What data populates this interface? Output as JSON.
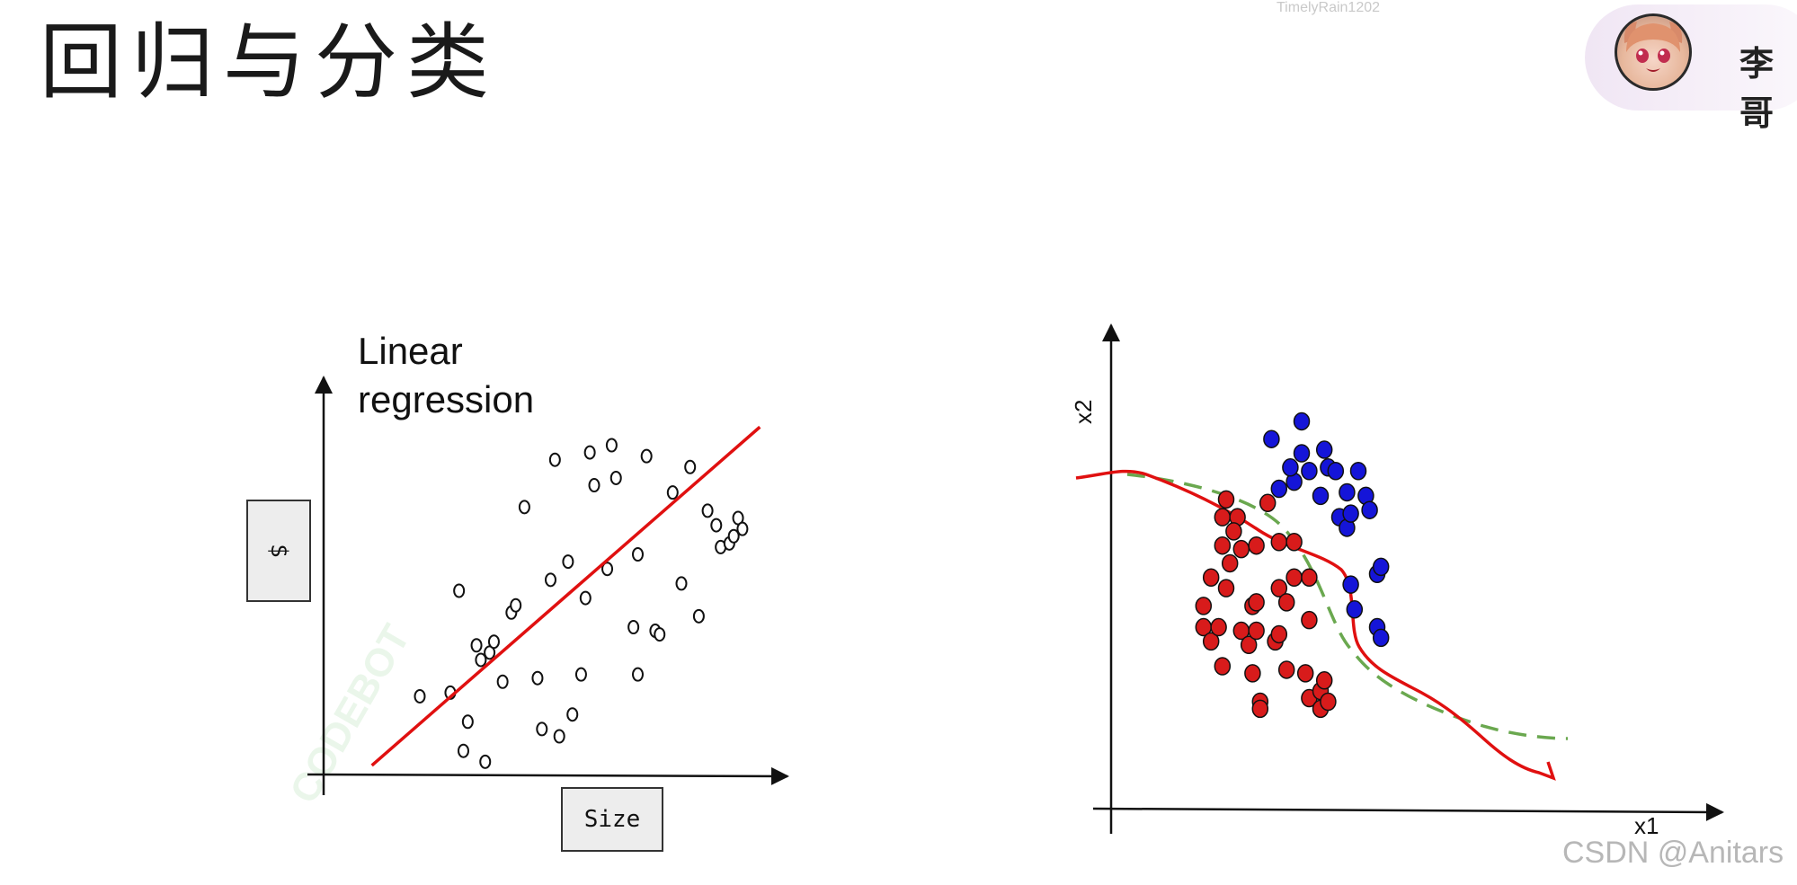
{
  "slide": {
    "title": "回归与分类",
    "watermark_top": "TimelyRain1202",
    "presenter_name": "李哥",
    "watermark_bottom": "CSDN @Anitars",
    "faint_watermark": "CODEBOT"
  },
  "chart_data": [
    {
      "type": "scatter",
      "title": "Linear regression",
      "xlabel": "Size",
      "ylabel": "$",
      "xlim": [
        0,
        100
      ],
      "ylim": [
        0,
        100
      ],
      "marker": "hollow-circle",
      "fit_line": {
        "color": "#e01010",
        "x": [
          9,
          98
        ],
        "y": [
          2,
          95
        ]
      },
      "points": [
        [
          20,
          21
        ],
        [
          29,
          50
        ],
        [
          27,
          22
        ],
        [
          31,
          14
        ],
        [
          30,
          6
        ],
        [
          35,
          3
        ],
        [
          33,
          35
        ],
        [
          34,
          31
        ],
        [
          36,
          33
        ],
        [
          37,
          36
        ],
        [
          39,
          25
        ],
        [
          41,
          44
        ],
        [
          42,
          46
        ],
        [
          44,
          73
        ],
        [
          47,
          26
        ],
        [
          48,
          12
        ],
        [
          50,
          53
        ],
        [
          51,
          86
        ],
        [
          52,
          10
        ],
        [
          54,
          58
        ],
        [
          55,
          16
        ],
        [
          57,
          27
        ],
        [
          58,
          48
        ],
        [
          59,
          88
        ],
        [
          60,
          79
        ],
        [
          63,
          56
        ],
        [
          64,
          90
        ],
        [
          65,
          81
        ],
        [
          69,
          40
        ],
        [
          70,
          60
        ],
        [
          70,
          27
        ],
        [
          72,
          87
        ],
        [
          74,
          39
        ],
        [
          75,
          38
        ],
        [
          78,
          77
        ],
        [
          80,
          52
        ],
        [
          82,
          84
        ],
        [
          84,
          43
        ],
        [
          86,
          72
        ],
        [
          88,
          68
        ],
        [
          89,
          62
        ],
        [
          91,
          63
        ],
        [
          92,
          65
        ],
        [
          93,
          70
        ],
        [
          94,
          67
        ]
      ]
    },
    {
      "type": "scatter",
      "xlabel": "x1",
      "ylabel": "x2",
      "xlim": [
        0,
        100
      ],
      "ylim": [
        0,
        100
      ],
      "series": [
        {
          "color": "#d81b1b",
          "points": [
            [
              16,
              55
            ],
            [
              14,
              47
            ],
            [
              14,
              41
            ],
            [
              16,
              37
            ],
            [
              19,
              30
            ],
            [
              18,
              41
            ],
            [
              19,
              64
            ],
            [
              19,
              72
            ],
            [
              20,
              77
            ],
            [
              23,
              72
            ],
            [
              22,
              68
            ],
            [
              21,
              59
            ],
            [
              24,
              63
            ],
            [
              20,
              52
            ],
            [
              24,
              40
            ],
            [
              26,
              36
            ],
            [
              27,
              47
            ],
            [
              27,
              28
            ],
            [
              29,
              20
            ],
            [
              29,
              18
            ],
            [
              28,
              64
            ],
            [
              28,
              48
            ],
            [
              28,
              40
            ],
            [
              31,
              76
            ],
            [
              33,
              37
            ],
            [
              34,
              65
            ],
            [
              34,
              52
            ],
            [
              34,
              39
            ],
            [
              36,
              48
            ],
            [
              36,
              29
            ],
            [
              38,
              65
            ],
            [
              38,
              55
            ],
            [
              42,
              55
            ],
            [
              42,
              43
            ],
            [
              41,
              28
            ],
            [
              42,
              21
            ],
            [
              45,
              23
            ],
            [
              45,
              18
            ],
            [
              46,
              26
            ],
            [
              47,
              20
            ]
          ]
        },
        {
          "color": "#1515d8",
          "points": [
            [
              32,
              94
            ],
            [
              34,
              80
            ],
            [
              40,
              99
            ],
            [
              38,
              82
            ],
            [
              40,
              90
            ],
            [
              37,
              86
            ],
            [
              42,
              85
            ],
            [
              45,
              78
            ],
            [
              46,
              91
            ],
            [
              47,
              86
            ],
            [
              49,
              85
            ],
            [
              50,
              72
            ],
            [
              52,
              79
            ],
            [
              52,
              69
            ],
            [
              53,
              73
            ],
            [
              53,
              53
            ],
            [
              55,
              85
            ],
            [
              57,
              78
            ],
            [
              58,
              74
            ],
            [
              60,
              56
            ],
            [
              61,
              58
            ],
            [
              54,
              46
            ],
            [
              60,
              41
            ],
            [
              61,
              38
            ]
          ]
        }
      ],
      "boundaries": [
        {
          "style": "solid",
          "color": "#e01010"
        },
        {
          "style": "dashed",
          "color": "#6aa84f"
        }
      ]
    }
  ]
}
